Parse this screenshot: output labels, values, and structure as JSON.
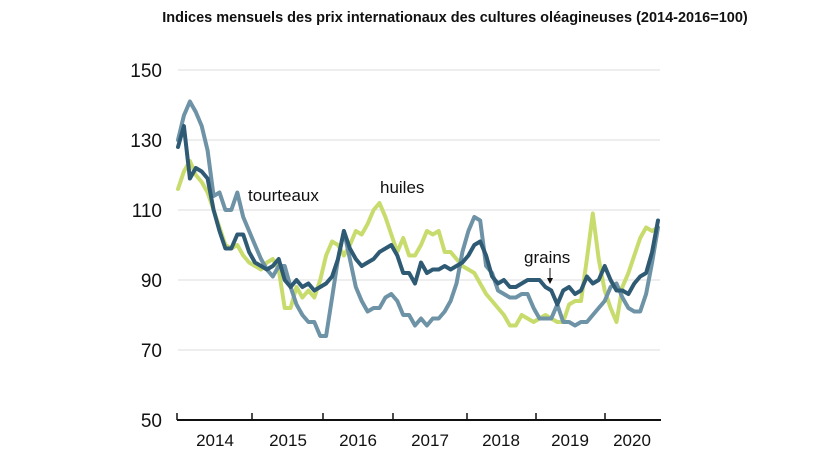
{
  "chart_data": {
    "type": "line",
    "title": "Indices mensuels des prix internationaux des cultures oléagineuses (2014-2016=100)",
    "xlabel": "",
    "ylabel": "",
    "ylim": [
      50,
      150
    ],
    "yticks": [
      50,
      70,
      90,
      110,
      130,
      150
    ],
    "grid": true,
    "x_tick_labels": [
      "2014",
      "2015",
      "2016",
      "2017",
      "2018",
      "2019",
      "2020"
    ],
    "x_start": "2013-10",
    "x_end": "2020-07",
    "frequency": "monthly",
    "series": [
      {
        "name": "grains",
        "color": "#2f5a74",
        "values": [
          128,
          134,
          119,
          122,
          121,
          119,
          110,
          104,
          99,
          99,
          103,
          103,
          98,
          95,
          94,
          93,
          94,
          96,
          90,
          88,
          90,
          88,
          89,
          87,
          88,
          89,
          91,
          96,
          104,
          99,
          96,
          94,
          95,
          96,
          98,
          99,
          100,
          97,
          92,
          92,
          89,
          95,
          92,
          93,
          93,
          94,
          93,
          94,
          95,
          97,
          100,
          101,
          97,
          91,
          89,
          90,
          88,
          88,
          89,
          90,
          90,
          90,
          88,
          87,
          83,
          87,
          88,
          86,
          87,
          91,
          89,
          90,
          94,
          90,
          87,
          87,
          86,
          89,
          91,
          92,
          98,
          107
        ]
      },
      {
        "name": "huiles",
        "color": "#c8dc6e",
        "values": [
          116,
          121,
          124,
          120,
          118,
          115,
          110,
          105,
          100,
          99,
          100,
          97,
          95,
          94,
          93,
          95,
          96,
          93,
          82,
          82,
          88,
          85,
          87,
          85,
          90,
          97,
          101,
          100,
          97,
          100,
          104,
          103,
          106,
          110,
          112,
          108,
          103,
          98,
          102,
          97,
          97,
          100,
          104,
          103,
          104,
          98,
          98,
          96,
          94,
          93,
          92,
          89,
          86,
          84,
          82,
          80,
          77,
          77,
          80,
          79,
          78,
          79,
          80,
          79,
          78,
          78,
          83,
          84,
          84,
          96,
          109,
          96,
          87,
          82,
          78,
          88,
          92,
          97,
          102,
          105,
          104,
          105
        ]
      },
      {
        "name": "tourteaux",
        "color": "#6e93a6",
        "values": [
          130,
          137,
          141,
          138,
          134,
          127,
          114,
          115,
          110,
          110,
          115,
          108,
          104,
          100,
          96,
          93,
          91,
          94,
          94,
          88,
          83,
          80,
          78,
          78,
          74,
          74,
          85,
          96,
          104,
          96,
          88,
          84,
          81,
          82,
          82,
          85,
          86,
          84,
          80,
          80,
          77,
          79,
          77,
          79,
          79,
          81,
          84,
          89,
          98,
          104,
          108,
          107,
          94,
          92,
          87,
          86,
          85,
          85,
          86,
          86,
          82,
          79,
          79,
          79,
          83,
          78,
          78,
          77,
          78,
          78,
          80,
          82,
          84,
          88,
          89,
          85,
          82,
          81,
          81,
          86,
          95,
          105
        ]
      }
    ],
    "annotations": [
      {
        "text": "tourteaux",
        "near_series": "tourteaux",
        "approx_x": "2014-10",
        "approx_y": 113
      },
      {
        "text": "huiles",
        "near_series": "huiles",
        "approx_x": "2016-12",
        "approx_y": 116
      },
      {
        "text": "grains",
        "near_series": "grains",
        "approx_x": "2019-04",
        "approx_y": 96,
        "arrow": "down"
      }
    ]
  },
  "labels": {
    "title": "Indices mensuels des prix internationaux des cultures oléagineuses (2014-2016=100)",
    "tourteaux": "tourteaux",
    "huiles": "huiles",
    "grains": "grains"
  }
}
